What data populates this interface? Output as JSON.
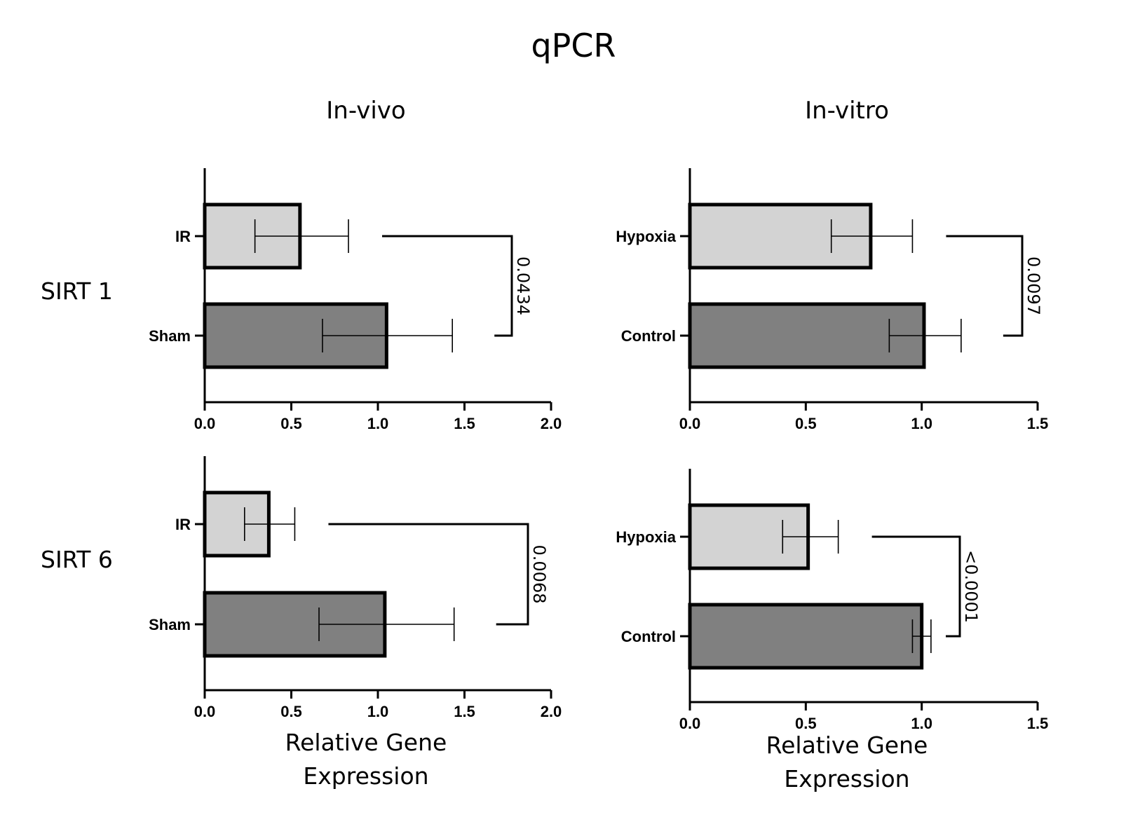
{
  "figure": {
    "title": "qPCR",
    "columns": [
      "In-vivo",
      "In-vitro"
    ],
    "rows": [
      "SIRT 1",
      "SIRT 6"
    ],
    "xlabel_line1": "Relative Gene",
    "xlabel_line2": "Expression",
    "colors": {
      "light_bar": "#d3d3d3",
      "dark_bar": "#808080",
      "stroke": "#000000"
    }
  },
  "chart_data": [
    {
      "type": "bar",
      "orientation": "horizontal",
      "panel": "In-vivo / SIRT 1",
      "categories": [
        "IR",
        "Sham"
      ],
      "values": [
        0.55,
        1.05
      ],
      "error": [
        [
          0.29,
          0.83
        ],
        [
          0.68,
          1.43
        ]
      ],
      "xlim": [
        0,
        2.0
      ],
      "xticks": [
        "0.0",
        "0.5",
        "1.0",
        "1.5",
        "2.0"
      ],
      "pvalue": "0.0434"
    },
    {
      "type": "bar",
      "orientation": "horizontal",
      "panel": "In-vitro / SIRT 1",
      "categories": [
        "Hypoxia",
        "Control"
      ],
      "values": [
        0.78,
        1.01
      ],
      "error": [
        [
          0.61,
          0.96
        ],
        [
          0.86,
          1.17
        ]
      ],
      "xlim": [
        0,
        1.5
      ],
      "xticks": [
        "0.0",
        "0.5",
        "1.0",
        "1.5"
      ],
      "pvalue": "0.0097"
    },
    {
      "type": "bar",
      "orientation": "horizontal",
      "panel": "In-vivo / SIRT 6",
      "categories": [
        "IR",
        "Sham"
      ],
      "values": [
        0.37,
        1.04
      ],
      "error": [
        [
          0.23,
          0.52
        ],
        [
          0.66,
          1.44
        ]
      ],
      "xlim": [
        0,
        2.0
      ],
      "xticks": [
        "0.0",
        "0.5",
        "1.0",
        "1.5",
        "2.0"
      ],
      "pvalue": "0.0068"
    },
    {
      "type": "bar",
      "orientation": "horizontal",
      "panel": "In-vitro / SIRT 6",
      "categories": [
        "Hypoxia",
        "Control"
      ],
      "values": [
        0.51,
        1.0
      ],
      "error": [
        [
          0.4,
          0.64
        ],
        [
          0.96,
          1.04
        ]
      ],
      "xlim": [
        0,
        1.5
      ],
      "xticks": [
        "0.0",
        "0.5",
        "1.0",
        "1.5"
      ],
      "pvalue": "<0.0001"
    }
  ]
}
